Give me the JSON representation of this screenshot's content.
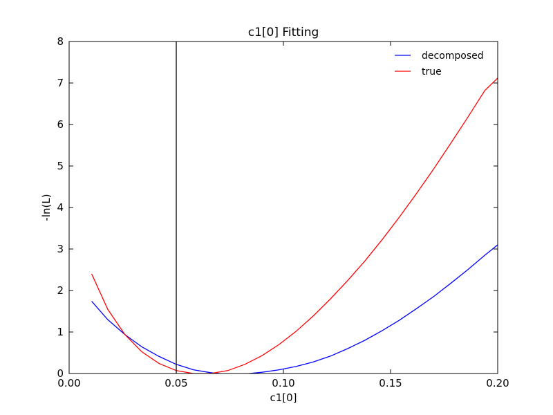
{
  "chart_data": {
    "type": "line",
    "title": "c1[0] Fitting",
    "xlabel": "c1[0]",
    "ylabel": "-ln(L)",
    "xlim": [
      0.0,
      0.2
    ],
    "ylim": [
      0,
      8
    ],
    "xticks": [
      "0.00",
      "0.05",
      "0.10",
      "0.15",
      "0.20"
    ],
    "yticks": [
      "0",
      "1",
      "2",
      "3",
      "4",
      "5",
      "6",
      "7",
      "8"
    ],
    "grid": false,
    "legend_position": "top-right",
    "vline_x": 0.05,
    "series": [
      {
        "name": "decomposed",
        "color": "#0000ff",
        "points": [
          [
            0.0105,
            1.74
          ],
          [
            0.018,
            1.3
          ],
          [
            0.026,
            0.94
          ],
          [
            0.034,
            0.64
          ],
          [
            0.042,
            0.41
          ],
          [
            0.05,
            0.22
          ],
          [
            0.058,
            0.09
          ],
          [
            0.066,
            0.02
          ],
          [
            0.074,
            -0.02
          ],
          [
            0.082,
            -0.01
          ],
          [
            0.09,
            0.03
          ],
          [
            0.098,
            0.09
          ],
          [
            0.106,
            0.17
          ],
          [
            0.114,
            0.28
          ],
          [
            0.122,
            0.42
          ],
          [
            0.13,
            0.6
          ],
          [
            0.138,
            0.8
          ],
          [
            0.146,
            1.03
          ],
          [
            0.154,
            1.28
          ],
          [
            0.162,
            1.56
          ],
          [
            0.17,
            1.85
          ],
          [
            0.178,
            2.17
          ],
          [
            0.186,
            2.5
          ],
          [
            0.194,
            2.85
          ],
          [
            0.2,
            3.1
          ]
        ]
      },
      {
        "name": "true",
        "color": "#ff0000",
        "points": [
          [
            0.0105,
            2.4
          ],
          [
            0.018,
            1.55
          ],
          [
            0.026,
            0.94
          ],
          [
            0.034,
            0.52
          ],
          [
            0.042,
            0.24
          ],
          [
            0.05,
            0.07
          ],
          [
            0.058,
            0.0
          ],
          [
            0.066,
            0.0
          ],
          [
            0.074,
            0.07
          ],
          [
            0.082,
            0.22
          ],
          [
            0.09,
            0.43
          ],
          [
            0.098,
            0.7
          ],
          [
            0.106,
            1.02
          ],
          [
            0.114,
            1.39
          ],
          [
            0.122,
            1.8
          ],
          [
            0.13,
            2.24
          ],
          [
            0.138,
            2.71
          ],
          [
            0.146,
            3.22
          ],
          [
            0.154,
            3.76
          ],
          [
            0.162,
            4.33
          ],
          [
            0.17,
            4.92
          ],
          [
            0.178,
            5.54
          ],
          [
            0.186,
            6.17
          ],
          [
            0.194,
            6.82
          ],
          [
            0.2,
            7.12
          ]
        ]
      }
    ]
  }
}
